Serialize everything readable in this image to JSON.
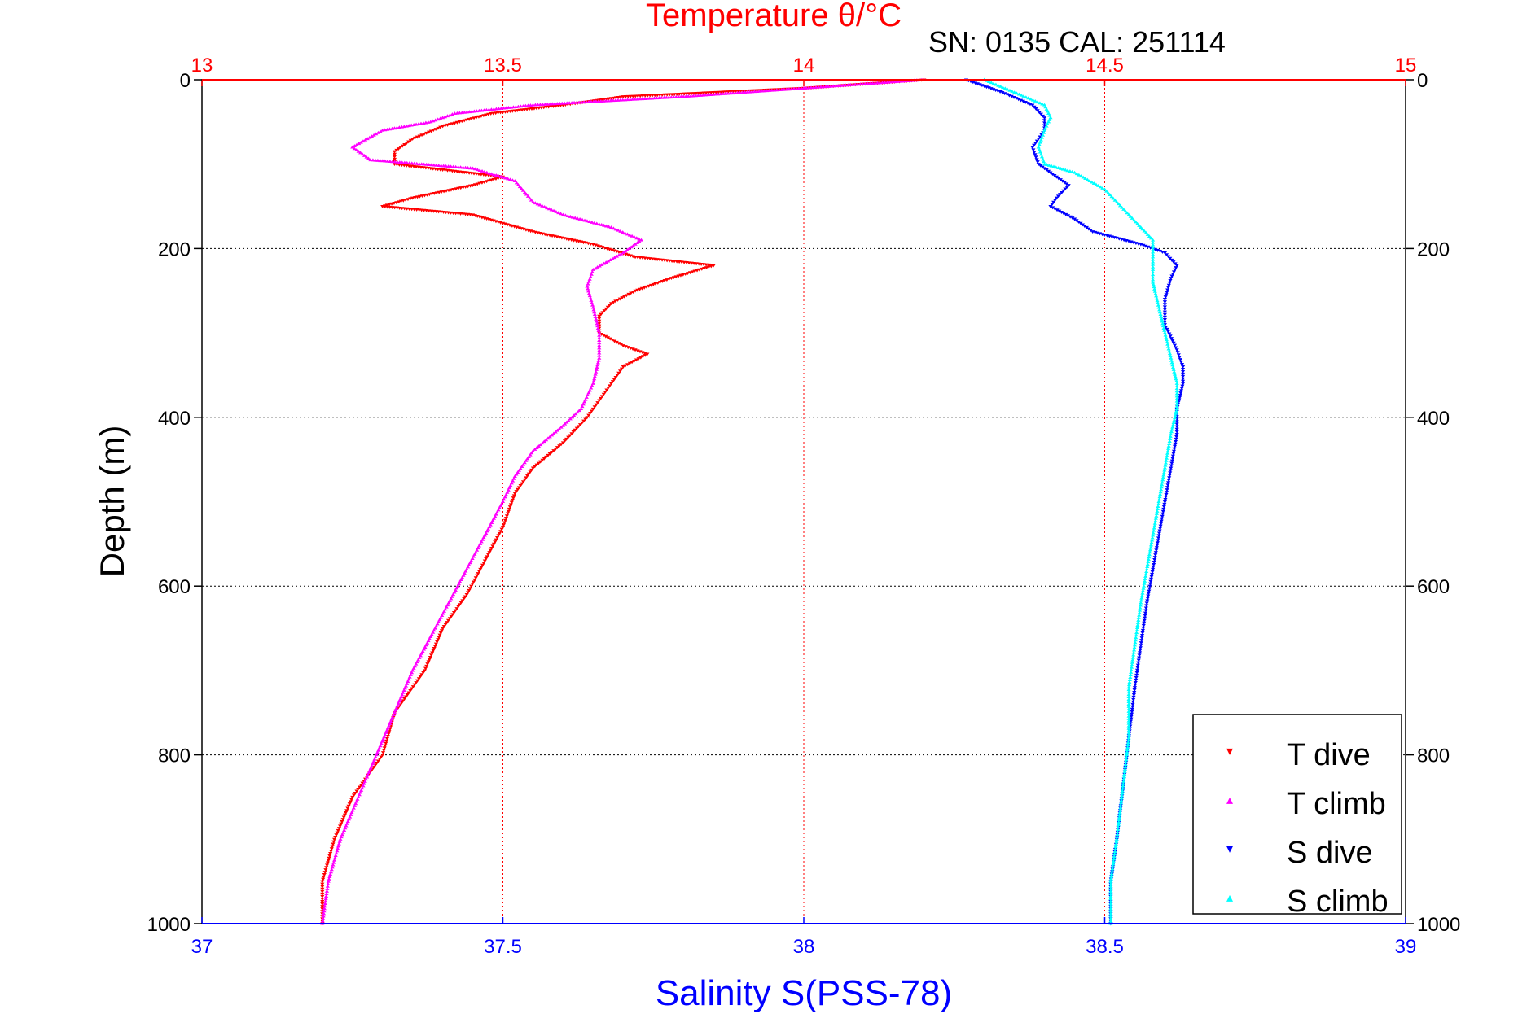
{
  "chart_data": {
    "type": "scatter",
    "title": "Temperature θ/°C",
    "subtitle": "SN: 0135  CAL: 251114",
    "ylabel": "Depth (m)",
    "xlabel_bottom": "Salinity S(PSS-78)",
    "colors": {
      "temperature_axis": "#ff0000",
      "salinity_axis": "#0000ff",
      "t_dive": "#ff0000",
      "t_climb": "#ff00ff",
      "s_dive": "#0000ff",
      "s_climb": "#00ffff",
      "grid_temperature": "#ff0000",
      "grid_depth": "#000000"
    },
    "axes": {
      "temperature": {
        "range": [
          13,
          15
        ],
        "ticks": [
          "13",
          "13.5",
          "14",
          "14.5",
          "15"
        ],
        "position": "top"
      },
      "salinity": {
        "range": [
          37,
          39
        ],
        "ticks": [
          "37",
          "37.5",
          "38",
          "38.5",
          "39"
        ],
        "position": "bottom"
      },
      "depth": {
        "range": [
          0,
          1000
        ],
        "reversed": true,
        "ticks": [
          "0",
          "200",
          "400",
          "600",
          "800",
          "1000"
        ],
        "position": "left and right"
      }
    },
    "grid": true,
    "legend": {
      "placement": "bottom-right",
      "entries": [
        {
          "label": "T dive",
          "marker": "▾",
          "series": "t_dive"
        },
        {
          "label": "T climb",
          "marker": "▴",
          "series": "t_climb"
        },
        {
          "label": "S dive",
          "marker": "▾",
          "series": "s_dive"
        },
        {
          "label": "S climb",
          "marker": "▴",
          "series": "s_climb"
        }
      ]
    },
    "series": [
      {
        "name": "T dive",
        "axis": "temperature",
        "marker": "down",
        "points": [
          [
            14.2,
            0
          ],
          [
            14.0,
            10
          ],
          [
            13.7,
            20
          ],
          [
            13.6,
            30
          ],
          [
            13.48,
            40
          ],
          [
            13.4,
            55
          ],
          [
            13.35,
            70
          ],
          [
            13.32,
            85
          ],
          [
            13.32,
            100
          ],
          [
            13.5,
            115
          ],
          [
            13.45,
            125
          ],
          [
            13.35,
            140
          ],
          [
            13.3,
            150
          ],
          [
            13.45,
            160
          ],
          [
            13.55,
            180
          ],
          [
            13.65,
            195
          ],
          [
            13.72,
            210
          ],
          [
            13.85,
            220
          ],
          [
            13.78,
            235
          ],
          [
            13.72,
            250
          ],
          [
            13.68,
            265
          ],
          [
            13.66,
            280
          ],
          [
            13.66,
            300
          ],
          [
            13.7,
            315
          ],
          [
            13.74,
            325
          ],
          [
            13.7,
            340
          ],
          [
            13.68,
            360
          ],
          [
            13.66,
            380
          ],
          [
            13.64,
            400
          ],
          [
            13.6,
            430
          ],
          [
            13.55,
            460
          ],
          [
            13.52,
            490
          ],
          [
            13.5,
            530
          ],
          [
            13.47,
            570
          ],
          [
            13.44,
            610
          ],
          [
            13.4,
            650
          ],
          [
            13.37,
            700
          ],
          [
            13.32,
            750
          ],
          [
            13.3,
            800
          ],
          [
            13.25,
            850
          ],
          [
            13.22,
            900
          ],
          [
            13.2,
            950
          ],
          [
            13.2,
            1000
          ]
        ]
      },
      {
        "name": "T climb",
        "axis": "temperature",
        "marker": "up",
        "points": [
          [
            14.2,
            0
          ],
          [
            14.0,
            10
          ],
          [
            13.8,
            20
          ],
          [
            13.55,
            30
          ],
          [
            13.42,
            40
          ],
          [
            13.38,
            50
          ],
          [
            13.3,
            60
          ],
          [
            13.25,
            80
          ],
          [
            13.28,
            95
          ],
          [
            13.45,
            105
          ],
          [
            13.52,
            120
          ],
          [
            13.55,
            145
          ],
          [
            13.6,
            160
          ],
          [
            13.68,
            175
          ],
          [
            13.73,
            190
          ],
          [
            13.7,
            205
          ],
          [
            13.65,
            225
          ],
          [
            13.64,
            245
          ],
          [
            13.65,
            270
          ],
          [
            13.66,
            300
          ],
          [
            13.66,
            330
          ],
          [
            13.65,
            360
          ],
          [
            13.63,
            390
          ],
          [
            13.6,
            410
          ],
          [
            13.55,
            440
          ],
          [
            13.52,
            470
          ],
          [
            13.5,
            500
          ],
          [
            13.47,
            540
          ],
          [
            13.44,
            580
          ],
          [
            13.41,
            620
          ],
          [
            13.38,
            660
          ],
          [
            13.35,
            700
          ],
          [
            13.32,
            750
          ],
          [
            13.29,
            800
          ],
          [
            13.26,
            850
          ],
          [
            13.23,
            900
          ],
          [
            13.21,
            950
          ],
          [
            13.2,
            1000
          ]
        ]
      },
      {
        "name": "S dive",
        "axis": "salinity",
        "marker": "down",
        "points": [
          [
            38.27,
            0
          ],
          [
            38.33,
            15
          ],
          [
            38.38,
            30
          ],
          [
            38.4,
            45
          ],
          [
            38.4,
            60
          ],
          [
            38.38,
            80
          ],
          [
            38.39,
            100
          ],
          [
            38.42,
            115
          ],
          [
            38.44,
            125
          ],
          [
            38.42,
            140
          ],
          [
            38.41,
            150
          ],
          [
            38.45,
            165
          ],
          [
            38.48,
            180
          ],
          [
            38.56,
            195
          ],
          [
            38.6,
            205
          ],
          [
            38.62,
            220
          ],
          [
            38.61,
            235
          ],
          [
            38.6,
            260
          ],
          [
            38.6,
            290
          ],
          [
            38.62,
            320
          ],
          [
            38.63,
            340
          ],
          [
            38.63,
            360
          ],
          [
            38.62,
            390
          ],
          [
            38.62,
            420
          ],
          [
            38.61,
            460
          ],
          [
            38.6,
            500
          ],
          [
            38.59,
            540
          ],
          [
            38.58,
            580
          ],
          [
            38.57,
            620
          ],
          [
            38.56,
            670
          ],
          [
            38.55,
            720
          ],
          [
            38.54,
            780
          ],
          [
            38.53,
            840
          ],
          [
            38.52,
            900
          ],
          [
            38.51,
            950
          ],
          [
            38.51,
            1000
          ]
        ]
      },
      {
        "name": "S climb",
        "axis": "salinity",
        "marker": "up",
        "points": [
          [
            38.3,
            0
          ],
          [
            38.35,
            15
          ],
          [
            38.4,
            30
          ],
          [
            38.41,
            45
          ],
          [
            38.4,
            60
          ],
          [
            38.39,
            80
          ],
          [
            38.4,
            100
          ],
          [
            38.45,
            110
          ],
          [
            38.5,
            130
          ],
          [
            38.54,
            160
          ],
          [
            38.58,
            190
          ],
          [
            38.58,
            210
          ],
          [
            38.58,
            240
          ],
          [
            38.59,
            270
          ],
          [
            38.6,
            300
          ],
          [
            38.61,
            330
          ],
          [
            38.62,
            360
          ],
          [
            38.62,
            390
          ],
          [
            38.61,
            420
          ],
          [
            38.6,
            460
          ],
          [
            38.59,
            500
          ],
          [
            38.58,
            540
          ],
          [
            38.57,
            580
          ],
          [
            38.56,
            620
          ],
          [
            38.55,
            670
          ],
          [
            38.54,
            720
          ],
          [
            38.54,
            780
          ],
          [
            38.53,
            840
          ],
          [
            38.52,
            900
          ],
          [
            38.51,
            950
          ],
          [
            38.51,
            1000
          ]
        ]
      }
    ]
  }
}
